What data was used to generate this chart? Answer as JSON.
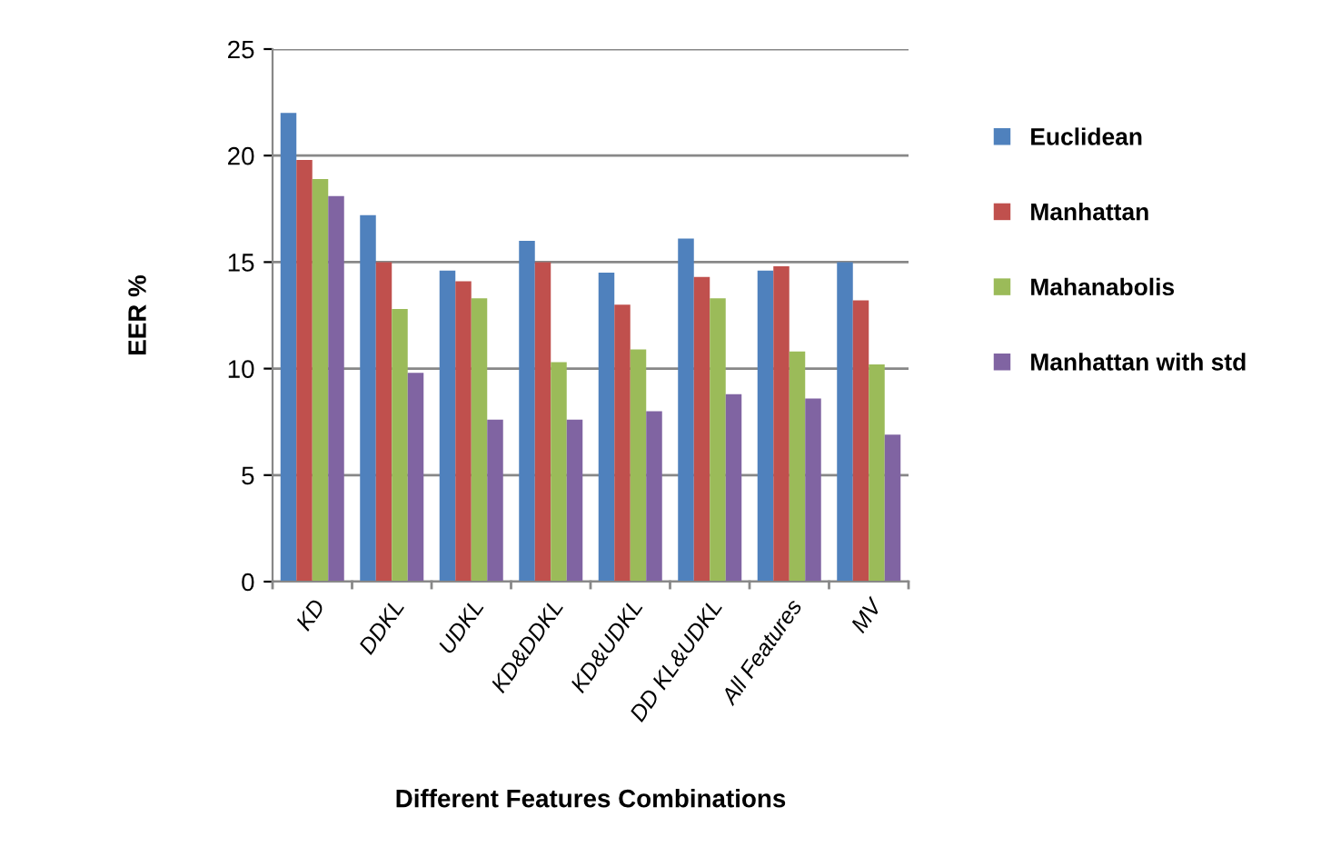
{
  "chart_data": {
    "type": "bar",
    "xlabel": "Different Features Combinations",
    "ylabel": "EER %",
    "categories": [
      "KD",
      "DDKL",
      "UDKL",
      "KD&DDKL",
      "KD&UDKL",
      "DD KL&UDKL",
      "All Features",
      "MV"
    ],
    "series": [
      {
        "name": "Euclidean",
        "color": "#4f81bd",
        "values": [
          22.0,
          17.2,
          14.6,
          16.0,
          14.5,
          16.1,
          14.6,
          15.0
        ]
      },
      {
        "name": "Manhattan",
        "color": "#c0504d",
        "values": [
          19.8,
          15.0,
          14.1,
          15.0,
          13.0,
          14.3,
          14.8,
          13.2
        ]
      },
      {
        "name": "Mahanabolis",
        "color": "#9bbb59",
        "values": [
          18.9,
          12.8,
          13.3,
          10.3,
          10.9,
          13.3,
          10.8,
          10.2
        ]
      },
      {
        "name": "Manhattan with std",
        "color": "#8064a2",
        "values": [
          18.1,
          9.8,
          7.6,
          7.6,
          8.0,
          8.8,
          8.6,
          6.9
        ]
      }
    ],
    "ylim": [
      0,
      25
    ],
    "yticks": [
      0,
      5,
      10,
      15,
      20,
      25
    ],
    "grid": "y",
    "legend": "right"
  }
}
